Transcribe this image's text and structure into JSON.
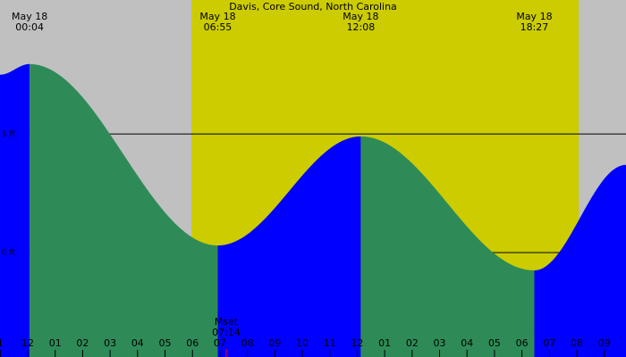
{
  "chart_data": {
    "type": "area",
    "title": "Davis, Core Sound, North Carolina",
    "x": [
      -1.01,
      0.07,
      6.92,
      12.13,
      18.45,
      21.79
    ],
    "values": [
      1.5,
      1.59,
      0.06,
      0.98,
      -0.15,
      0.74
    ],
    "event_dates": [
      null,
      "May 18",
      "May 18",
      "May 18",
      "May 18",
      null
    ],
    "event_times": [
      null,
      "00:04",
      "06:55",
      "12:08",
      "18:27",
      null
    ],
    "xlim": [
      -1.01,
      21.79
    ],
    "ylim": [
      -0.88,
      2.13
    ],
    "yticks": [
      {
        "value": 1,
        "label": "1 ft"
      },
      {
        "value": 0,
        "label": "0 ft"
      }
    ],
    "xticks": [
      {
        "value": -1,
        "label": "1"
      },
      {
        "value": 0,
        "label": "12"
      },
      {
        "value": 1,
        "label": "01"
      },
      {
        "value": 2,
        "label": "02"
      },
      {
        "value": 3,
        "label": "03"
      },
      {
        "value": 4,
        "label": "04"
      },
      {
        "value": 5,
        "label": "05"
      },
      {
        "value": 6,
        "label": "06"
      },
      {
        "value": 7,
        "label": "07"
      },
      {
        "value": 8,
        "label": "08"
      },
      {
        "value": 9,
        "label": "09"
      },
      {
        "value": 10,
        "label": "10"
      },
      {
        "value": 11,
        "label": "11"
      },
      {
        "value": 12,
        "label": "12"
      },
      {
        "value": 13,
        "label": "01"
      },
      {
        "value": 14,
        "label": "02"
      },
      {
        "value": 15,
        "label": "03"
      },
      {
        "value": 16,
        "label": "04"
      },
      {
        "value": 17,
        "label": "05"
      },
      {
        "value": 18,
        "label": "06"
      },
      {
        "value": 19,
        "label": "07"
      },
      {
        "value": 20,
        "label": "08"
      },
      {
        "value": 21,
        "label": "09"
      }
    ],
    "daylight": [
      5.96,
      20.07
    ],
    "moonset": {
      "label": "Mset",
      "time": "07:14",
      "x": 7.23
    },
    "rising_color": "#0000ff",
    "falling_color": "#2e8b57",
    "day_color": "#cccc00",
    "night_color": "#c0c0c0"
  }
}
